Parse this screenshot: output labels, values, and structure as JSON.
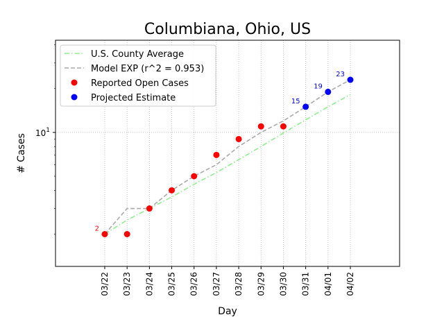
{
  "chart_data": {
    "type": "line",
    "title": "Columbiana, Ohio, US",
    "xlabel": "Day",
    "ylabel": "# Cases",
    "y_scale": "log",
    "ylim": [
      1.2,
      43
    ],
    "y_ticks": [
      {
        "value": 10,
        "label": "10^1"
      }
    ],
    "categories": [
      "03/22",
      "03/23",
      "03/24",
      "03/25",
      "03/26",
      "03/27",
      "03/28",
      "03/29",
      "03/30",
      "03/31",
      "04/01",
      "04/02"
    ],
    "grid": true,
    "legend_position": "top-left",
    "series": [
      {
        "name": "U.S. County Average",
        "style": "dash-dot line",
        "color": "#90ee90",
        "values": [
          2.0,
          2.5,
          3.0,
          3.6,
          4.4,
          5.3,
          6.5,
          8.0,
          9.9,
          12.2,
          15.0,
          18.2
        ]
      },
      {
        "name": "Model EXP (r^2 = 0.953)",
        "style": "dashed line",
        "color": "#aaaaaa",
        "values": [
          2.0,
          3.0,
          3.0,
          4.0,
          5.0,
          6.0,
          8.0,
          10.0,
          12.0,
          15.0,
          19.0,
          23.0
        ]
      },
      {
        "name": "Reported Open Cases",
        "style": "markers",
        "color": "#ff0000",
        "x": [
          "03/22",
          "03/23",
          "03/24",
          "03/25",
          "03/26",
          "03/27",
          "03/28",
          "03/29",
          "03/30"
        ],
        "values": [
          2,
          2,
          3,
          4,
          5,
          7,
          9,
          11,
          11
        ]
      },
      {
        "name": "Projected Estimate",
        "style": "markers",
        "color": "#0000ff",
        "x": [
          "03/31",
          "04/01",
          "04/02"
        ],
        "values": [
          15,
          19,
          23
        ]
      }
    ],
    "annotations": [
      {
        "x": "03/22",
        "value": 2,
        "text": "2",
        "color": "#ff0000"
      },
      {
        "x": "03/31",
        "value": 15,
        "text": "15",
        "color": "#0000cc"
      },
      {
        "x": "04/01",
        "value": 19,
        "text": "19",
        "color": "#0000cc"
      },
      {
        "x": "04/02",
        "value": 23,
        "text": "23",
        "color": "#0000cc"
      }
    ]
  }
}
